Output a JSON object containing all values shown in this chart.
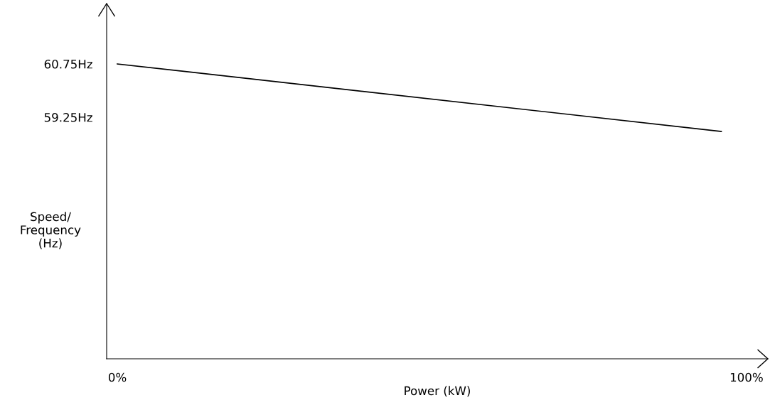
{
  "chart_data": {
    "type": "line",
    "xlabel": "Power (kW)",
    "ylabel": "Speed/\nFrequency\n(Hz)",
    "x": [
      0,
      96
    ],
    "series": [
      {
        "color": "#000000",
        "values": [
          60.75,
          58.85
        ]
      }
    ],
    "xlim": [
      -1.7,
      103.4
    ],
    "ylim": [
      52.45,
      62.45
    ],
    "xticks": [
      {
        "value": 0,
        "label": "0%"
      },
      {
        "value": 100,
        "label": "100%"
      }
    ],
    "yticks": [
      {
        "value": 60.75,
        "label": "60.75Hz"
      },
      {
        "value": 59.25,
        "label": "59.25Hz"
      }
    ],
    "grid": false,
    "legend": false,
    "marker": "none",
    "line_style": "solid"
  }
}
